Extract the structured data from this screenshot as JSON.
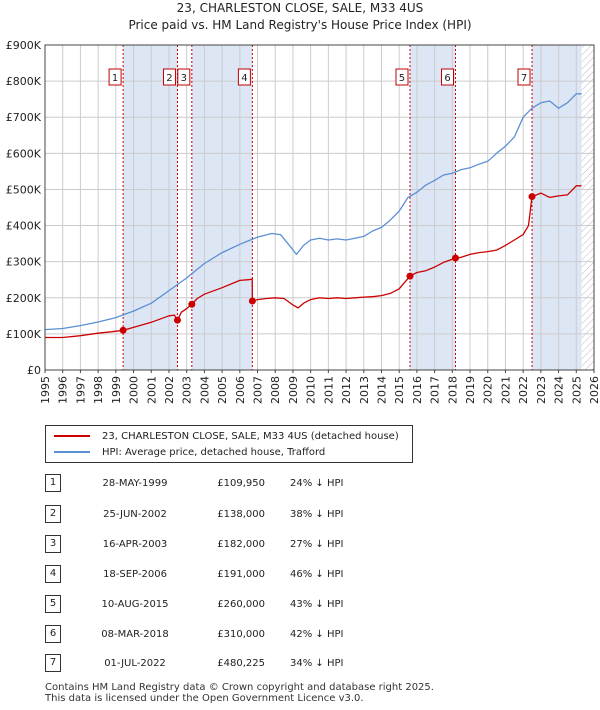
{
  "title_line1": "23, CHARLESTON CLOSE, SALE, M33 4US",
  "title_line2": "Price paid vs. HM Land Registry's House Price Index (HPI)",
  "colors": {
    "property": "#cc0000",
    "hpi": "#5b8fd4",
    "shade": "#dde6f5",
    "grid": "#cccccc",
    "marker_line": "#cc0000"
  },
  "chart_data": {
    "type": "line",
    "xlim": [
      1995,
      2026
    ],
    "ylim": [
      0,
      900000
    ],
    "y_ticks": [
      0,
      100000,
      200000,
      300000,
      400000,
      500000,
      600000,
      700000,
      800000,
      900000
    ],
    "y_tick_labels": [
      "£0",
      "£100K",
      "£200K",
      "£300K",
      "£400K",
      "£500K",
      "£600K",
      "£700K",
      "£800K",
      "£900K"
    ],
    "x_ticks": [
      1995,
      1996,
      1997,
      1998,
      1999,
      2000,
      2001,
      2002,
      2003,
      2004,
      2005,
      2006,
      2007,
      2008,
      2009,
      2010,
      2011,
      2012,
      2013,
      2014,
      2015,
      2016,
      2017,
      2018,
      2019,
      2020,
      2021,
      2022,
      2023,
      2024,
      2025,
      2026
    ],
    "shaded_spans": [
      [
        1999.41,
        2002.48
      ],
      [
        2003.29,
        2006.71
      ],
      [
        2015.61,
        2018.18
      ],
      [
        2022.5,
        2025.3
      ]
    ],
    "hatched_span": [
      2025.3,
      2026
    ],
    "series": [
      {
        "name": "23, CHARLESTON CLOSE, SALE, M33 4US (detached house)",
        "x": [
          1995,
          1996,
          1997,
          1998,
          1998.8,
          1999.41,
          2000,
          2001,
          2002,
          2002.3,
          2002.48,
          2002.7,
          2003.0,
          2003.29,
          2003.6,
          2004,
          2005,
          2006,
          2006.5,
          2006.7,
          2006.71,
          2007,
          2007.5,
          2008,
          2008.5,
          2009,
          2009.3,
          2009.6,
          2010,
          2010.5,
          2011,
          2011.5,
          2012,
          2012.5,
          2013,
          2013.5,
          2014,
          2014.5,
          2015,
          2015.61,
          2016,
          2016.5,
          2017,
          2017.5,
          2018.18,
          2018.5,
          2019,
          2019.5,
          2020,
          2020.5,
          2021,
          2021.5,
          2022,
          2022.3,
          2022.5,
          2023,
          2023.5,
          2024,
          2024.5,
          2025,
          2025.3
        ],
        "values": [
          90000,
          90000,
          95000,
          102000,
          106000,
          109950,
          118000,
          132000,
          150000,
          152000,
          138000,
          160000,
          170000,
          182000,
          198000,
          210000,
          228000,
          248000,
          250000,
          252000,
          191000,
          195000,
          198000,
          200000,
          198000,
          180000,
          172000,
          185000,
          195000,
          200000,
          198000,
          200000,
          198000,
          200000,
          202000,
          203000,
          206000,
          212000,
          225000,
          260000,
          270000,
          275000,
          285000,
          298000,
          310000,
          312000,
          320000,
          325000,
          328000,
          332000,
          345000,
          360000,
          375000,
          400000,
          480225,
          490000,
          478000,
          482000,
          485000,
          510000,
          510000
        ]
      },
      {
        "name": "HPI: Average price, detached house, Trafford",
        "x": [
          1995,
          1996,
          1997,
          1998,
          1999,
          2000,
          2001,
          2002,
          2003,
          2004,
          2005,
          2006,
          2007,
          2007.8,
          2008.3,
          2008.8,
          2009.2,
          2009.6,
          2010,
          2010.5,
          2011,
          2011.5,
          2012,
          2012.5,
          2013,
          2013.5,
          2014,
          2014.5,
          2015,
          2015.5,
          2016,
          2016.5,
          2017,
          2017.5,
          2018,
          2018.5,
          2019,
          2019.5,
          2020,
          2020.5,
          2021,
          2021.5,
          2022,
          2022.5,
          2023,
          2023.5,
          2024,
          2024.5,
          2025,
          2025.3
        ],
        "values": [
          112000,
          115000,
          123000,
          133000,
          145000,
          163000,
          185000,
          220000,
          255000,
          295000,
          325000,
          348000,
          368000,
          378000,
          375000,
          345000,
          320000,
          345000,
          360000,
          365000,
          360000,
          363000,
          360000,
          365000,
          370000,
          385000,
          395000,
          415000,
          440000,
          478000,
          492000,
          512000,
          525000,
          540000,
          545000,
          555000,
          560000,
          570000,
          578000,
          600000,
          620000,
          645000,
          700000,
          725000,
          740000,
          745000,
          725000,
          740000,
          765000,
          765000
        ]
      }
    ],
    "sales": [
      {
        "label": "1",
        "date_num": 1999.41,
        "price": 109950
      },
      {
        "label": "2",
        "date_num": 2002.48,
        "price": 138000
      },
      {
        "label": "3",
        "date_num": 2003.29,
        "price": 182000
      },
      {
        "label": "4",
        "date_num": 2006.71,
        "price": 191000
      },
      {
        "label": "5",
        "date_num": 2015.61,
        "price": 260000
      },
      {
        "label": "6",
        "date_num": 2018.18,
        "price": 310000
      },
      {
        "label": "7",
        "date_num": 2022.5,
        "price": 480225
      }
    ]
  },
  "legend": {
    "property": "23, CHARLESTON CLOSE, SALE, M33 4US (detached house)",
    "hpi": "HPI: Average price, detached house, Trafford"
  },
  "table": [
    {
      "num": "1",
      "date": "28-MAY-1999",
      "price": "£109,950",
      "hpi": "24% ↓ HPI"
    },
    {
      "num": "2",
      "date": "25-JUN-2002",
      "price": "£138,000",
      "hpi": "38% ↓ HPI"
    },
    {
      "num": "3",
      "date": "16-APR-2003",
      "price": "£182,000",
      "hpi": "27% ↓ HPI"
    },
    {
      "num": "4",
      "date": "18-SEP-2006",
      "price": "£191,000",
      "hpi": "46% ↓ HPI"
    },
    {
      "num": "5",
      "date": "10-AUG-2015",
      "price": "£260,000",
      "hpi": "43% ↓ HPI"
    },
    {
      "num": "6",
      "date": "08-MAR-2018",
      "price": "£310,000",
      "hpi": "42% ↓ HPI"
    },
    {
      "num": "7",
      "date": "01-JUL-2022",
      "price": "£480,225",
      "hpi": "34% ↓ HPI"
    }
  ],
  "footer_line1": "Contains HM Land Registry data © Crown copyright and database right 2025.",
  "footer_line2": "This data is licensed under the Open Government Licence v3.0."
}
